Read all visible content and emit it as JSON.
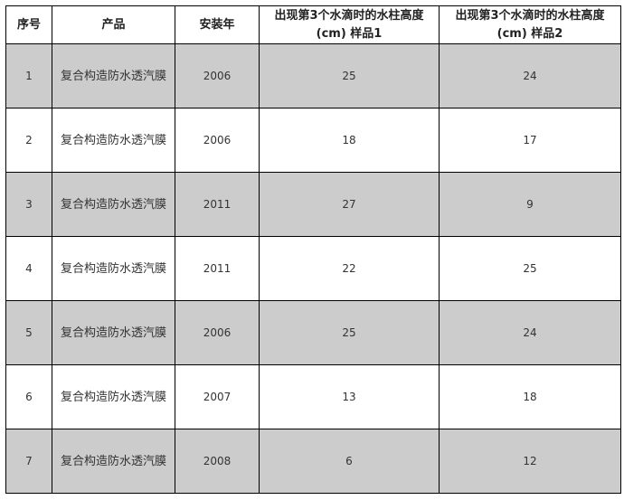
{
  "headers": [
    "序号",
    "产品",
    "安装年",
    "出现第3个水滴时的水柱高度 (cm) 样品1",
    "出现第3个水滴时的水柱高度 (cm) 样品2"
  ],
  "shade_color": "#cccccc",
  "rows": [
    {
      "no": "1",
      "product": "复合构造防水透汽膜",
      "year": "2006",
      "s1": "25",
      "s2": "24",
      "shaded": true
    },
    {
      "no": "2",
      "product": "复合构造防水透汽膜",
      "year": "2006",
      "s1": "18",
      "s2": "17",
      "shaded": false
    },
    {
      "no": "3",
      "product": "复合构造防水透汽膜",
      "year": "2011",
      "s1": "27",
      "s2": "9",
      "shaded": true
    },
    {
      "no": "4",
      "product": "复合构造防水透汽膜",
      "year": "2011",
      "s1": "22",
      "s2": "25",
      "shaded": false
    },
    {
      "no": "5",
      "product": "复合构造防水透汽膜",
      "year": "2006",
      "s1": "25",
      "s2": "24",
      "shaded": true
    },
    {
      "no": "6",
      "product": "复合构造防水透汽膜",
      "year": "2007",
      "s1": "13",
      "s2": "18",
      "shaded": false
    },
    {
      "no": "7",
      "product": "复合构造防水透汽膜",
      "year": "2008",
      "s1": "6",
      "s2": "12",
      "shaded": true
    }
  ]
}
